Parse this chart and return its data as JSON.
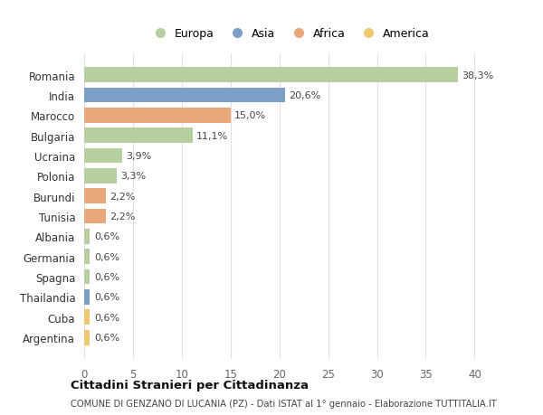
{
  "countries": [
    "Romania",
    "India",
    "Marocco",
    "Bulgaria",
    "Ucraina",
    "Polonia",
    "Burundi",
    "Tunisia",
    "Albania",
    "Germania",
    "Spagna",
    "Thailandia",
    "Cuba",
    "Argentina"
  ],
  "values": [
    38.3,
    20.6,
    15.0,
    11.1,
    3.9,
    3.3,
    2.2,
    2.2,
    0.6,
    0.6,
    0.6,
    0.6,
    0.6,
    0.6
  ],
  "labels": [
    "38,3%",
    "20,6%",
    "15,0%",
    "11,1%",
    "3,9%",
    "3,3%",
    "2,2%",
    "2,2%",
    "0,6%",
    "0,6%",
    "0,6%",
    "0,6%",
    "0,6%",
    "0,6%"
  ],
  "continents": [
    "Europa",
    "Asia",
    "Africa",
    "Europa",
    "Europa",
    "Europa",
    "Africa",
    "Africa",
    "Europa",
    "Europa",
    "Europa",
    "Asia",
    "America",
    "America"
  ],
  "colors": {
    "Europa": "#b5cfa0",
    "Asia": "#7b9fc7",
    "Africa": "#e8a87c",
    "America": "#f0c96e"
  },
  "legend_labels": [
    "Europa",
    "Asia",
    "Africa",
    "America"
  ],
  "xlim": [
    0,
    42
  ],
  "xticks": [
    0,
    5,
    10,
    15,
    20,
    25,
    30,
    35,
    40
  ],
  "title": "Cittadini Stranieri per Cittadinanza",
  "subtitle": "COMUNE DI GENZANO DI LUCANIA (PZ) - Dati ISTAT al 1° gennaio - Elaborazione TUTTITALIA.IT",
  "bg_color": "#ffffff",
  "bar_height": 0.75,
  "label_fontsize": 8,
  "ytick_fontsize": 8.5,
  "xtick_fontsize": 8.5
}
